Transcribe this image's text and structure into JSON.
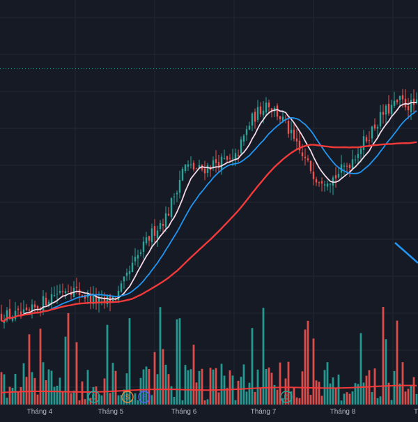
{
  "colors": {
    "background": "#161a25",
    "grid": "#242833",
    "up": "#26a69a",
    "down": "#ef5350",
    "ma_fast": "#f3d9e6",
    "ma_mid": "#2196f3",
    "ma_slow": "#f23a3a",
    "vol_ma": "#f23a3a",
    "price_line": "#26a69a",
    "trendline": "#2196f3",
    "axis_text": "#b2b5be"
  },
  "chart_data": {
    "type": "candlestick",
    "x_axis": {
      "tick_labels": [
        "Tháng 4",
        "Tháng 5",
        "Tháng 6",
        "Tháng 7",
        "Tháng 8",
        "Th"
      ]
    },
    "y_axis": {
      "range": [
        0,
        100
      ],
      "labels_visible": false
    },
    "grid": true,
    "price_line_level": 83,
    "overlays": [
      {
        "kind": "moving-average",
        "color": "ma_fast"
      },
      {
        "kind": "moving-average",
        "color": "ma_mid"
      },
      {
        "kind": "moving-average",
        "color": "ma_slow"
      }
    ],
    "price_anchors": [
      [
        0,
        22
      ],
      [
        6,
        22
      ],
      [
        12,
        27
      ],
      [
        16,
        29
      ],
      [
        20,
        27
      ],
      [
        24,
        25
      ],
      [
        28,
        27
      ],
      [
        32,
        35
      ],
      [
        36,
        42
      ],
      [
        40,
        47
      ],
      [
        44,
        59
      ],
      [
        48,
        58
      ],
      [
        52,
        60
      ],
      [
        56,
        60
      ],
      [
        60,
        70
      ],
      [
        64,
        75
      ],
      [
        68,
        70
      ],
      [
        72,
        62
      ],
      [
        76,
        56
      ],
      [
        80,
        56
      ],
      [
        84,
        60
      ],
      [
        88,
        66
      ],
      [
        92,
        72
      ],
      [
        96,
        75
      ],
      [
        98,
        74
      ]
    ],
    "volume_range": [
      0,
      100
    ],
    "volume_ma_level": 17,
    "trendline": {
      "from": [
        94.5,
        40
      ],
      "to": [
        100,
        35
      ]
    },
    "event_markers": [
      {
        "label": "D",
        "color": "#26a69a",
        "at": 22.5
      },
      {
        "label": "S",
        "color": "#f0883e",
        "at": 30.5
      },
      {
        "label": "E",
        "color": "#5b5bff",
        "at": 34.5
      },
      {
        "label": "D",
        "color": "#26a69a",
        "at": 68.5
      }
    ]
  }
}
